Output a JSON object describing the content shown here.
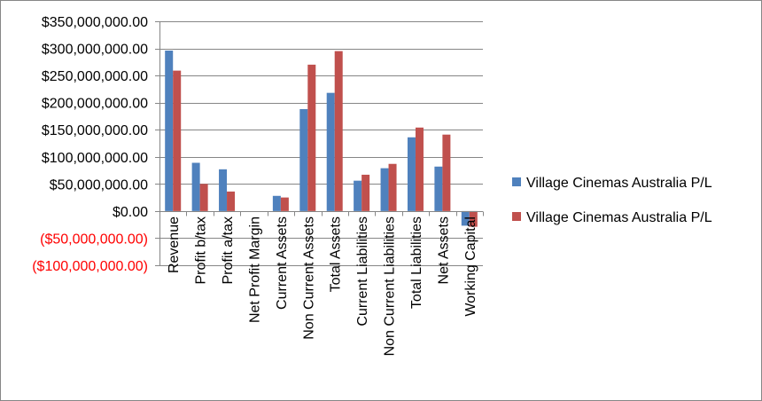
{
  "chart_data": {
    "type": "bar",
    "title": "",
    "xlabel": "",
    "ylabel": "",
    "ylim": [
      -100000000,
      350000000
    ],
    "yticks": [
      350000000,
      300000000,
      250000000,
      200000000,
      150000000,
      100000000,
      50000000,
      0,
      -50000000,
      -100000000
    ],
    "ytick_labels": [
      "$350,000,000.00",
      "$300,000,000.00",
      "$250,000,000.00",
      "$200,000,000.00",
      "$150,000,000.00",
      "$100,000,000.00",
      "$50,000,000.00",
      "$0.00",
      "($50,000,000.00)",
      "($100,000,000.00)"
    ],
    "negative_tick_color": "#ff0000",
    "grid": true,
    "legend_position": "right",
    "categories": [
      "Revenue",
      "Profit b/tax",
      "Profit a/tax",
      "Net Profit Margin",
      "Current Assets",
      "Non Current Assets",
      "Total Assets",
      "Current Liabilities",
      "Non Current Liabilities",
      "Total Liabilities",
      "Net Assets",
      "Working Capital"
    ],
    "series": [
      {
        "name": "Village Cinemas Australia P/L",
        "color": "#4f81bd",
        "values": [
          296000000,
          89000000,
          77000000,
          0,
          28000000,
          188000000,
          218000000,
          56000000,
          79000000,
          136000000,
          82000000,
          -27000000
        ]
      },
      {
        "name": "Village Cinemas Australia P/L",
        "color": "#c0504d",
        "values": [
          259000000,
          50000000,
          36000000,
          0,
          25000000,
          270000000,
          295000000,
          67000000,
          87000000,
          154000000,
          141000000,
          -29000000
        ]
      }
    ]
  }
}
